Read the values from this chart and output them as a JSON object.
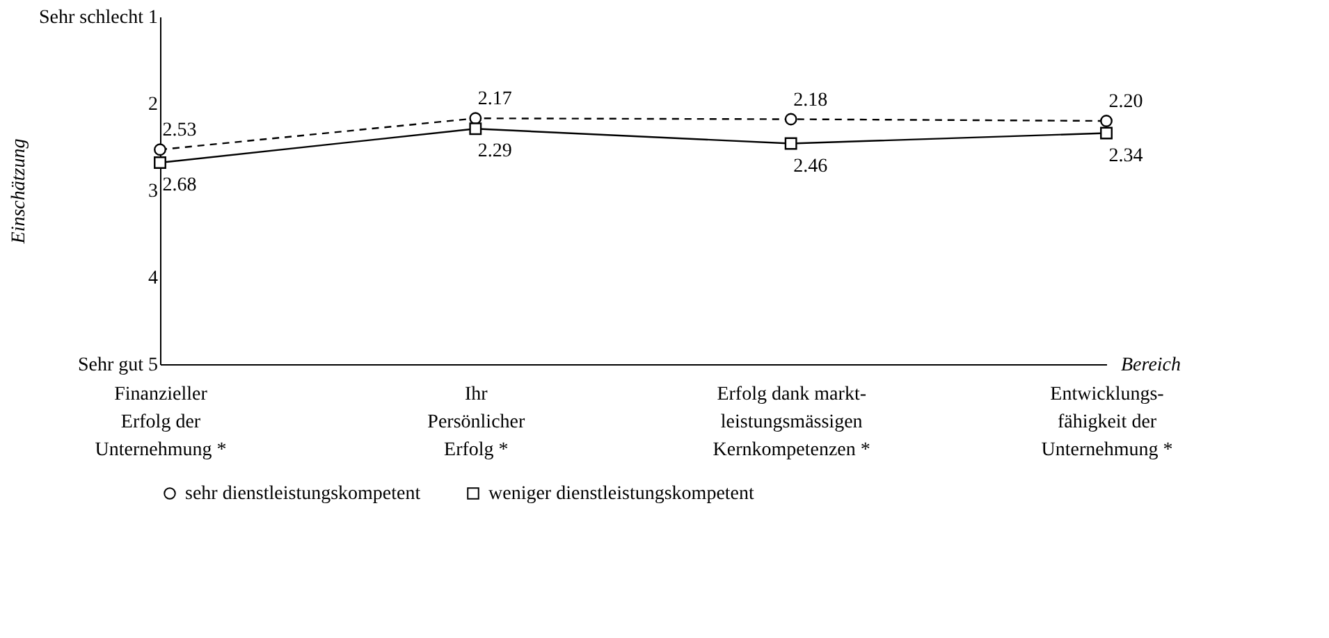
{
  "chart_data": {
    "type": "line",
    "categories": [
      "Finanzieller\nErfolg der\nUnternehmung *",
      "Ihr\nPersönlicher\nErfolg *",
      "Erfolg dank markt-\nleistungsmässigen\nKernkompetenzen *",
      "Entwicklungs-\nfähigkeit der\nUnternehmung *"
    ],
    "series": [
      {
        "name": "sehr dienstleistungskompetent",
        "color": "#000000",
        "values": [
          2.53,
          2.17,
          2.18,
          2.2
        ],
        "value_labels": [
          "2.53",
          "2.17",
          "2.18",
          "2.20"
        ],
        "marker": "circle",
        "line_style": "dashed"
      },
      {
        "name": "weniger dienstleistungskompetent",
        "color": "#000000",
        "values": [
          2.68,
          2.29,
          2.46,
          2.34
        ],
        "value_labels": [
          "2.68",
          "2.29",
          "2.46",
          "2.34"
        ],
        "marker": "square",
        "line_style": "solid"
      }
    ],
    "xlabel": "Bereich",
    "ylabel": "Einschätzung",
    "ylim": [
      5,
      1
    ],
    "yticks": [
      {
        "value": 1,
        "label": "Sehr schlecht  1"
      },
      2,
      3,
      4,
      {
        "value": 5,
        "label": "Sehr gut         5"
      }
    ],
    "grid": false,
    "legend": "bottom"
  }
}
